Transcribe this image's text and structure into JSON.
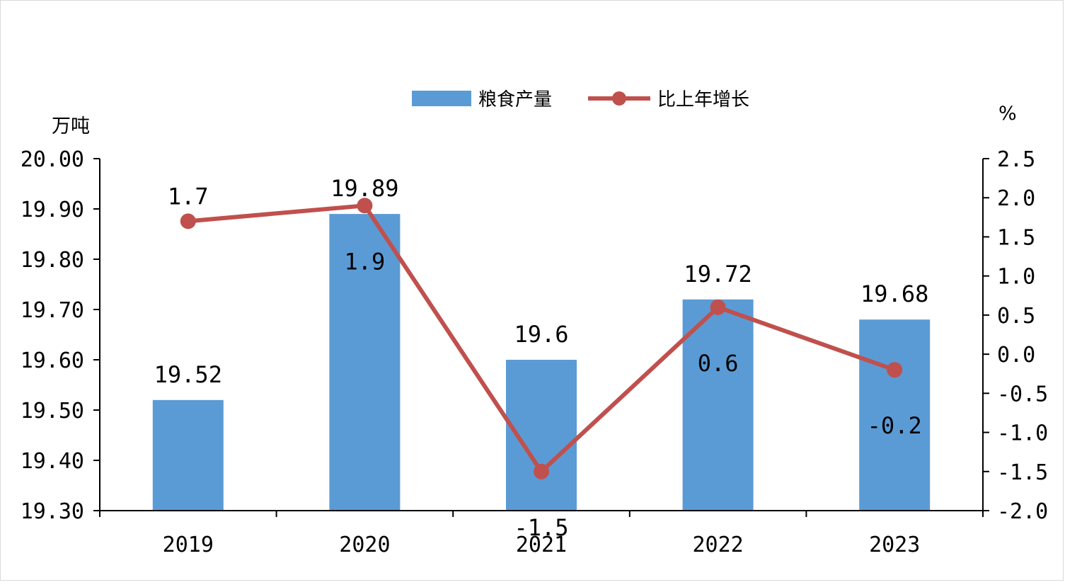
{
  "chart_data": {
    "type": "bar+line",
    "categories": [
      "2019",
      "2020",
      "2021",
      "2022",
      "2023"
    ],
    "series": [
      {
        "name": "粮食产量",
        "type": "bar",
        "axis": "left",
        "values": [
          19.52,
          19.89,
          19.6,
          19.72,
          19.68
        ],
        "labels": [
          "19.52",
          "19.89",
          "19.6",
          "19.72",
          "19.68"
        ],
        "color": "#5b9bd5"
      },
      {
        "name": "比上年增长",
        "type": "line",
        "axis": "right",
        "values": [
          1.7,
          1.9,
          -1.5,
          0.6,
          -0.2
        ],
        "labels": [
          "1.7",
          "1.9",
          "-1.5",
          "0.6",
          "-0.2"
        ],
        "color": "#c0504d"
      }
    ],
    "left_axis": {
      "unit": "万吨",
      "ylim": [
        19.3,
        20.0
      ],
      "ticks": [
        "20.00",
        "19.90",
        "19.80",
        "19.70",
        "19.60",
        "19.50",
        "19.40",
        "19.30"
      ]
    },
    "right_axis": {
      "unit": "%",
      "ylim": [
        -2.0,
        2.5
      ],
      "ticks": [
        "2.5",
        "2.0",
        "1.5",
        "1.0",
        "0.5",
        "0.0",
        "-0.5",
        "-1.0",
        "-1.5",
        "-2.0"
      ]
    },
    "legend_position": "top",
    "grid": false
  }
}
